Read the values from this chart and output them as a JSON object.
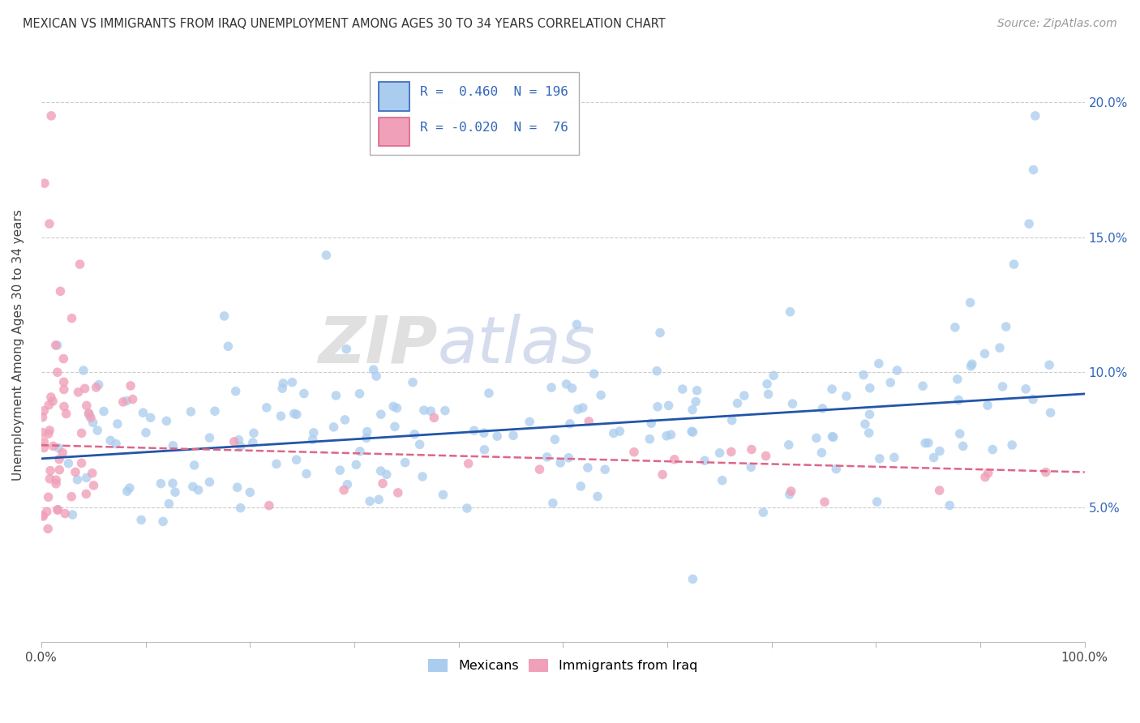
{
  "title": "MEXICAN VS IMMIGRANTS FROM IRAQ UNEMPLOYMENT AMONG AGES 30 TO 34 YEARS CORRELATION CHART",
  "source": "Source: ZipAtlas.com",
  "ylabel": "Unemployment Among Ages 30 to 34 years",
  "xlim": [
    0.0,
    1.0
  ],
  "ylim": [
    0.0,
    0.22
  ],
  "xtick_positions": [
    0.0,
    0.1,
    0.2,
    0.3,
    0.4,
    0.5,
    0.6,
    0.7,
    0.8,
    0.9,
    1.0
  ],
  "xticklabels": [
    "0.0%",
    "",
    "",
    "",
    "",
    "",
    "",
    "",
    "",
    "",
    "100.0%"
  ],
  "ytick_positions": [
    0.05,
    0.1,
    0.15,
    0.2
  ],
  "yticklabels": [
    "5.0%",
    "10.0%",
    "15.0%",
    "20.0%"
  ],
  "legend_blue_r": "0.460",
  "legend_blue_n": "196",
  "legend_pink_r": "-0.020",
  "legend_pink_n": "76",
  "blue_color": "#aaccee",
  "pink_color": "#f0a0b8",
  "blue_line_color": "#2255aa",
  "pink_line_color": "#dd6688",
  "watermark_zip": "ZIP",
  "watermark_atlas": "atlas",
  "background_color": "#ffffff"
}
